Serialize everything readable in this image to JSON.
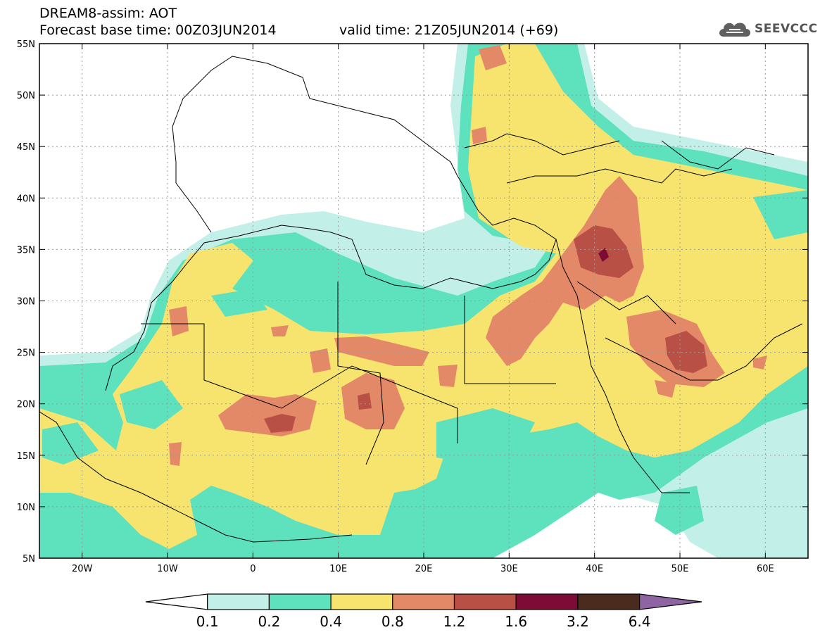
{
  "header": {
    "line1": "DREAM8-assim: AOT",
    "line2": "Forecast base time: 00Z03JUN2014",
    "line3": "valid time: 21Z05JUN2014 (+69)",
    "logo_text": "SEEVCCC",
    "logo_icon": "cloud-icon"
  },
  "map": {
    "lon_range": [
      -25,
      65
    ],
    "lat_range": [
      5,
      55
    ],
    "lat_ticks": [
      "5N",
      "10N",
      "15N",
      "20N",
      "25N",
      "30N",
      "35N",
      "40N",
      "45N",
      "50N",
      "55N"
    ],
    "lon_ticks": [
      "20W",
      "10W",
      "0",
      "10E",
      "20E",
      "30E",
      "40E",
      "50E",
      "60E"
    ],
    "colors": {
      "land_bg": "#ffffff",
      "border": "#000000",
      "grid": "#9a9a9a"
    }
  },
  "legend": {
    "labels": [
      "0.1",
      "0.2",
      "0.4",
      "0.8",
      "1.2",
      "1.6",
      "3.2",
      "6.4"
    ],
    "colors": [
      "#ffffff",
      "#c2f0e8",
      "#5ee1bd",
      "#f6e46e",
      "#e48967",
      "#b95045",
      "#7e0a36",
      "#4a2b1e",
      "#8e64a3"
    ]
  }
}
